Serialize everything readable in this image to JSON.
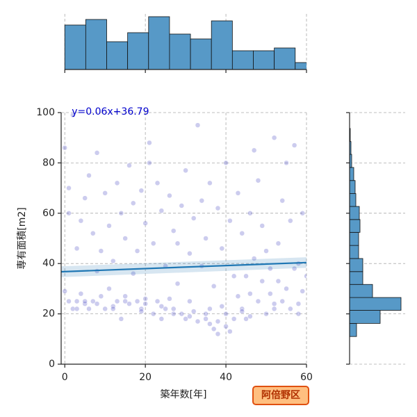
{
  "chart_data": {
    "type": "jointplot",
    "x_label": "築年数[年]",
    "y_label": "専有面積[m2]",
    "annotation": "y=0.06x+36.79",
    "tag": "阿倍野区",
    "xlim": [
      -0.9,
      60
    ],
    "ylim": [
      0,
      100
    ],
    "xticks": [
      0,
      20,
      40,
      60
    ],
    "yticks": [
      0,
      20,
      40,
      60,
      80,
      100
    ],
    "grid": true,
    "scatter": {
      "color": "#3333bb",
      "alpha": 0.25,
      "x": [
        0,
        0,
        1,
        1,
        1,
        2,
        2,
        3,
        3,
        4,
        4,
        5,
        5,
        6,
        6,
        7,
        7,
        8,
        8,
        9,
        9,
        10,
        10,
        11,
        11,
        12,
        12,
        13,
        13,
        14,
        14,
        15,
        15,
        16,
        16,
        17,
        17,
        18,
        18,
        19,
        19,
        20,
        20,
        21,
        21,
        22,
        22,
        23,
        23,
        24,
        24,
        25,
        25,
        26,
        26,
        27,
        27,
        28,
        28,
        29,
        29,
        30,
        30,
        31,
        31,
        32,
        32,
        33,
        33,
        34,
        34,
        35,
        35,
        36,
        36,
        37,
        37,
        38,
        38,
        39,
        39,
        40,
        40,
        41,
        41,
        42,
        42,
        43,
        43,
        44,
        44,
        45,
        45,
        46,
        46,
        47,
        47,
        48,
        48,
        49,
        49,
        50,
        50,
        51,
        51,
        52,
        52,
        53,
        53,
        54,
        54,
        55,
        55,
        56,
        56,
        57,
        57,
        58,
        58,
        59,
        59,
        60,
        3,
        5,
        8,
        12,
        15,
        19,
        20,
        24,
        27,
        31,
        35,
        36,
        38,
        40,
        44,
        46,
        52,
        58
      ],
      "y": [
        29,
        86,
        25,
        60,
        70,
        22,
        99,
        25,
        46,
        28,
        57,
        24,
        66,
        22,
        75,
        25,
        52,
        84,
        37,
        27,
        45,
        22,
        68,
        30,
        55,
        23,
        41,
        25,
        72,
        18,
        60,
        27,
        50,
        24,
        79,
        36,
        64,
        25,
        45,
        22,
        69,
        26,
        56,
        88,
        80,
        20,
        48,
        25,
        72,
        61,
        18,
        22,
        39,
        67,
        26,
        20,
        53,
        48,
        32,
        20,
        63,
        18,
        77,
        25,
        44,
        58,
        21,
        95,
        17,
        39,
        65,
        20,
        50,
        22,
        72,
        14,
        31,
        17,
        62,
        23,
        46,
        80,
        20,
        13,
        57,
        35,
        18,
        68,
        27,
        22,
        52,
        35,
        18,
        60,
        28,
        85,
        42,
        25,
        73,
        33,
        55,
        20,
        45,
        38,
        28,
        90,
        24,
        48,
        33,
        25,
        65,
        80,
        30,
        22,
        57,
        87,
        38,
        40,
        24,
        29,
        60,
        35,
        22,
        25,
        24,
        22,
        25,
        21,
        24,
        23,
        22,
        19,
        18,
        16,
        12,
        15,
        21,
        19,
        22,
        20
      ]
    },
    "regression": {
      "color": "#1f77b4",
      "x": [
        -0.9,
        60
      ],
      "y": [
        36.74,
        40.39
      ],
      "ci_lower": [
        34.6,
        38.3
      ],
      "ci_upper": [
        38.9,
        42.5
      ]
    },
    "x_hist": {
      "color": "#5799c7",
      "lim": [
        0,
        80
      ],
      "bins": [
        0,
        5.2,
        10.4,
        15.6,
        20.8,
        26,
        31.2,
        36.4,
        41.6,
        46.8,
        52,
        57.2,
        62.4
      ],
      "counts": [
        64,
        72,
        40,
        53,
        76,
        51,
        44,
        70,
        27,
        27,
        31,
        10
      ]
    },
    "y_hist": {
      "color": "#5799c7",
      "lim": [
        0,
        80
      ],
      "bins": [
        11,
        16.2,
        21.4,
        26.5,
        31.7,
        36.8,
        42,
        47.2,
        52.4,
        57.5,
        62.7,
        67.8,
        73,
        78.2,
        83.4,
        88.5,
        93.7
      ],
      "counts": [
        10,
        44,
        74,
        33,
        19,
        19,
        13,
        13,
        15,
        14,
        9,
        8,
        6,
        3,
        2,
        1
      ]
    }
  }
}
